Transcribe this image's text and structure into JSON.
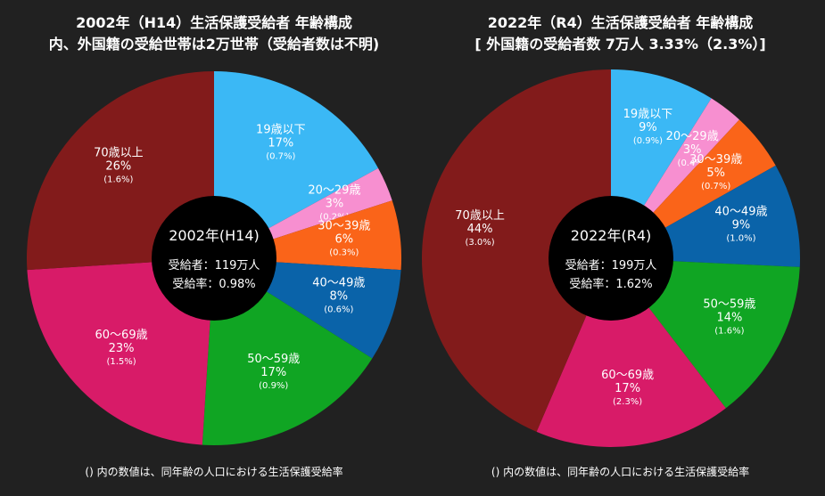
{
  "chart_data": [
    {
      "type": "pie",
      "title": "2002年（H14）生活保護受給者 年齢構成",
      "subtitle": "内、外国籍の受給世帯は2万世帯（受給者数は不明)",
      "center": {
        "title": "2002年(H14)",
        "line1": "受給者：119万人",
        "line2": "受給率：0.98%"
      },
      "note": "() 内の数値は、同年齢の人口における生活保護受給率",
      "slices": [
        {
          "label": "19歳以下",
          "pct": 17,
          "pct_text": "17%",
          "rate_text": "(0.7%)",
          "color": "#3BB8F5"
        },
        {
          "label": "20〜29歳",
          "pct": 3,
          "pct_text": "3%",
          "rate_text": "(0.2%)",
          "color": "#F78FD0"
        },
        {
          "label": "30〜39歳",
          "pct": 6,
          "pct_text": "6%",
          "rate_text": "(0.3%)",
          "color": "#FA6419"
        },
        {
          "label": "40〜49歳",
          "pct": 8,
          "pct_text": "8%",
          "rate_text": "(0.6%)",
          "color": "#0A63A9"
        },
        {
          "label": "50〜59歳",
          "pct": 17,
          "pct_text": "17%",
          "rate_text": "(0.9%)",
          "color": "#10A523"
        },
        {
          "label": "60〜69歳",
          "pct": 23,
          "pct_text": "23%",
          "rate_text": "(1.5%)",
          "color": "#D81B68"
        },
        {
          "label": "70歳以上",
          "pct": 26,
          "pct_text": "26%",
          "rate_text": "(1.6%)",
          "color": "#821B1B"
        }
      ]
    },
    {
      "type": "pie",
      "title": "2022年（R4）生活保護受給者 年齢構成",
      "subtitle": "[ 外国籍の受給者数 7万人 3.33%（2.3%）]",
      "center": {
        "title": "2022年(R4)",
        "line1": "受給者：199万人",
        "line2": "受給率：1.62%"
      },
      "note": "() 内の数値は、同年齢の人口における生活保護受給率",
      "slices": [
        {
          "label": "19歳以下",
          "pct": 9,
          "pct_text": "9%",
          "rate_text": "(0.9%)",
          "color": "#3BB8F5"
        },
        {
          "label": "20〜29歳",
          "pct": 3,
          "pct_text": "3%",
          "rate_text": "(0.4%)",
          "color": "#F78FD0"
        },
        {
          "label": "30〜39歳",
          "pct": 5,
          "pct_text": "5%",
          "rate_text": "(0.7%)",
          "color": "#FA6419"
        },
        {
          "label": "40〜49歳",
          "pct": 9,
          "pct_text": "9%",
          "rate_text": "(1.0%)",
          "color": "#0A63A9"
        },
        {
          "label": "50〜59歳",
          "pct": 14,
          "pct_text": "14%",
          "rate_text": "(1.6%)",
          "color": "#10A523"
        },
        {
          "label": "60〜69歳",
          "pct": 17,
          "pct_text": "17%",
          "rate_text": "(2.3%)",
          "color": "#D81B68"
        },
        {
          "label": "70歳以上",
          "pct": 44,
          "pct_text": "44%",
          "rate_text": "(3.0%)",
          "color": "#821B1B"
        }
      ]
    }
  ]
}
